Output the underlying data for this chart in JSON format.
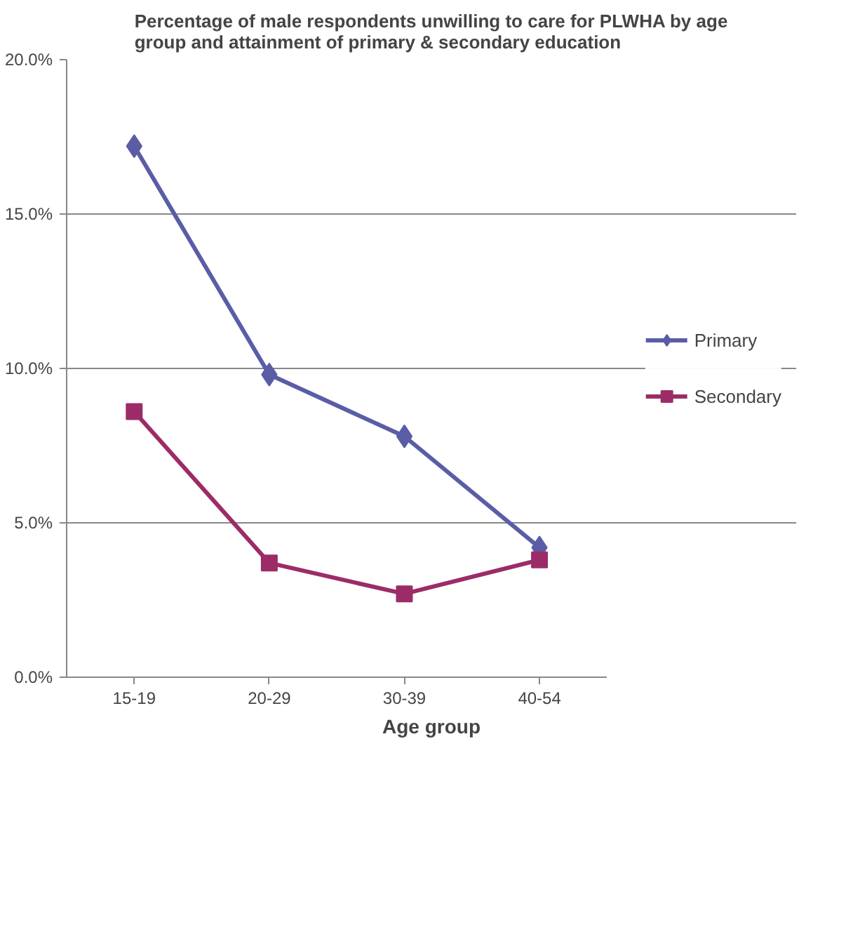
{
  "chart_data": {
    "type": "line",
    "title": "Percentage of male respondents unwilling to care for PLWHA by age group and attainment of primary & secondary education",
    "xlabel": "Age group",
    "categories": [
      "15-19",
      "20-29",
      "30-39",
      "40-54"
    ],
    "series": [
      {
        "name": "Primary",
        "color": "#5a5da6",
        "values": [
          17.2,
          9.8,
          7.8,
          4.2
        ],
        "marker": "diamond"
      },
      {
        "name": "Secondary",
        "color": "#9c2c67",
        "values": [
          8.6,
          3.7,
          2.7,
          3.8
        ],
        "marker": "square"
      }
    ],
    "ylim": [
      0,
      20
    ],
    "yticks": [
      {
        "value": 0,
        "label": "0.0%"
      },
      {
        "value": 5,
        "label": "5.0%"
      },
      {
        "value": 10,
        "label": "10.0%"
      },
      {
        "value": 15,
        "label": "15.0%"
      },
      {
        "value": 20,
        "label": "20.0%"
      }
    ],
    "grid": "y",
    "legend": "right",
    "line_style": "solid"
  }
}
